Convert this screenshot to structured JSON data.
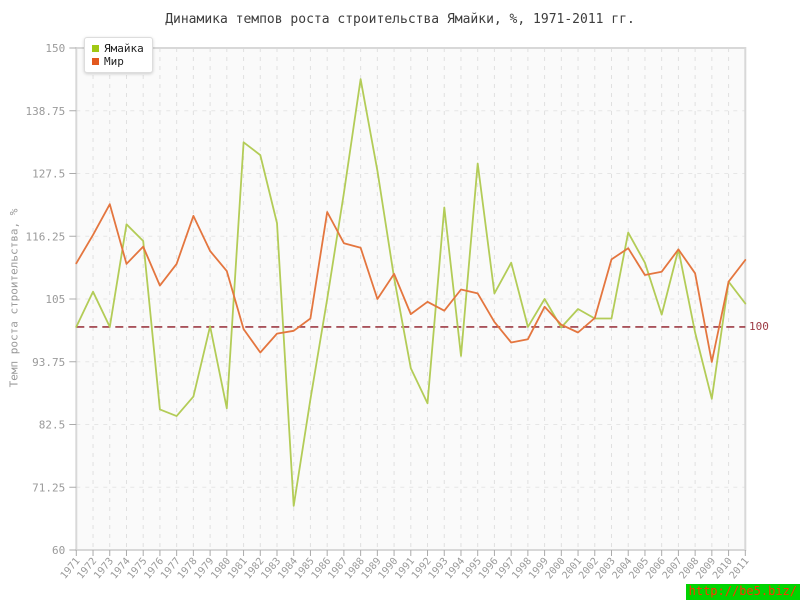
{
  "chart_data": {
    "type": "line",
    "title": "Динамика темпов роста строительства Ямайки, %, 1971-2011 гг.",
    "ylabel": "Темп роста строительства, %",
    "xlabel": "",
    "ylim": [
      60,
      150
    ],
    "y_ticks": [
      60,
      71.25,
      82.5,
      93.75,
      105,
      116.25,
      127.5,
      138.75,
      150
    ],
    "grid": true,
    "legend_position": "top-left",
    "x": [
      1971,
      1972,
      1973,
      1974,
      1975,
      1976,
      1977,
      1978,
      1979,
      1980,
      1981,
      1982,
      1983,
      1984,
      1985,
      1986,
      1987,
      1988,
      1989,
      1990,
      1991,
      1992,
      1993,
      1994,
      1995,
      1996,
      1997,
      1998,
      1999,
      2000,
      2001,
      2002,
      2003,
      2004,
      2005,
      2006,
      2007,
      2008,
      2009,
      2010,
      2011
    ],
    "series": [
      {
        "name": "Ямайка",
        "color": "#b3cc57",
        "legend_color": "#a0c814",
        "values": [
          100,
          106.3,
          100,
          118.4,
          115.4,
          85.2,
          84,
          87.5,
          100.1,
          85.4,
          133.1,
          130.8,
          118.6,
          67.9,
          87,
          105,
          124,
          144.4,
          128,
          108.8,
          92.6,
          86.3,
          121.4,
          94.8,
          129.3,
          106,
          111.5,
          100,
          105,
          99.9,
          103.2,
          101.5,
          101.5,
          116.9,
          111.5,
          102.2,
          113.9,
          99,
          87.1,
          108.1,
          104.2
        ]
      },
      {
        "name": "Мир",
        "color": "#e4763f",
        "legend_color": "#e2581e",
        "values": [
          111.4,
          116.5,
          122,
          111.3,
          114.4,
          107.4,
          111.3,
          119.9,
          113.6,
          110,
          99.6,
          95.4,
          98.8,
          99.3,
          101.5,
          120.6,
          115,
          114.2,
          105,
          109.5,
          102.3,
          104.5,
          102.9,
          106.7,
          106,
          100.9,
          97.2,
          97.8,
          103.6,
          100.4,
          99,
          101.6,
          112.1,
          114.1,
          109.3,
          109.9,
          113.9,
          109.6,
          93.7,
          108.1,
          112
        ]
      }
    ],
    "reference_line": {
      "value": 100,
      "label": "100",
      "color": "#9c3a44"
    }
  },
  "watermark": {
    "text": "http://be5.biz/",
    "background": "#00d400",
    "text_color": "#ff3300"
  }
}
